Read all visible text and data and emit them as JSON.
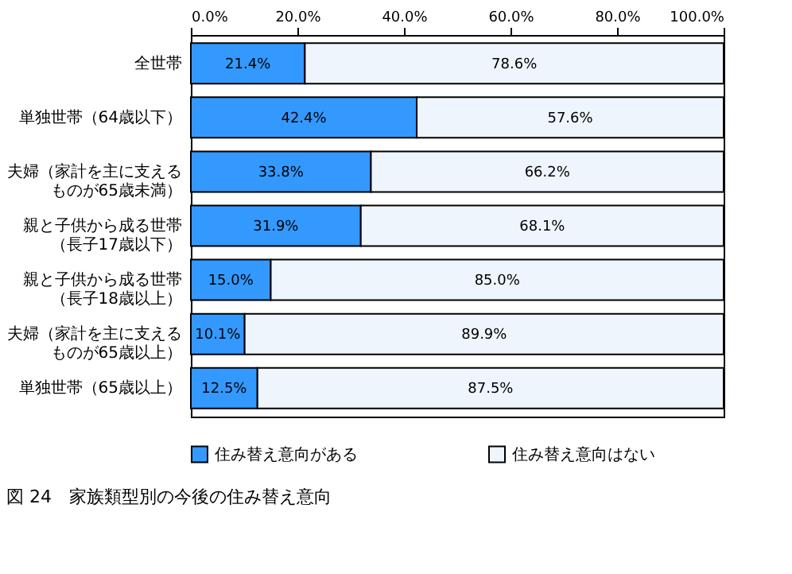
{
  "chart_data": {
    "type": "bar",
    "orientation": "horizontal",
    "stacked": true,
    "title": "図 24　家族類型別の今後の住み替え意向",
    "categories": [
      "全世帯",
      "単独世帯（64歳以下）",
      "夫婦（家計を主に支えるものが65歳未満）",
      "親と子供から成る世帯（長子17歳以下）",
      "親と子供から成る世帯（長子18歳以上）",
      "夫婦（家計を主に支えるものが65歳以上）",
      "単独世帯（65歳以上）"
    ],
    "series": [
      {
        "name": "住み替え意向がある",
        "color": "#3399ff",
        "values": [
          21.4,
          42.4,
          33.8,
          31.9,
          15.0,
          10.1,
          12.5
        ],
        "value_labels": [
          "21.4%",
          "42.4%",
          "33.8%",
          "31.9%",
          "15.0%",
          "10.1%",
          "12.5%"
        ]
      },
      {
        "name": "住み替え意向はない",
        "color": "#eef5fd",
        "values": [
          78.6,
          57.6,
          66.2,
          68.1,
          85.0,
          89.9,
          87.5
        ],
        "value_labels": [
          "78.6%",
          "57.6%",
          "66.2%",
          "68.1%",
          "85.0%",
          "89.9%",
          "87.5%"
        ]
      }
    ],
    "xlim": [
      0,
      100
    ],
    "xticks": [
      {
        "value": 0,
        "label": "0.0%"
      },
      {
        "value": 20,
        "label": "20.0%"
      },
      {
        "value": 40,
        "label": "40.0%"
      },
      {
        "value": 60,
        "label": "60.0%"
      },
      {
        "value": 80,
        "label": "80.0%"
      },
      {
        "value": 100,
        "label": "100.0%"
      }
    ],
    "grid": false,
    "legend": "bottom"
  }
}
